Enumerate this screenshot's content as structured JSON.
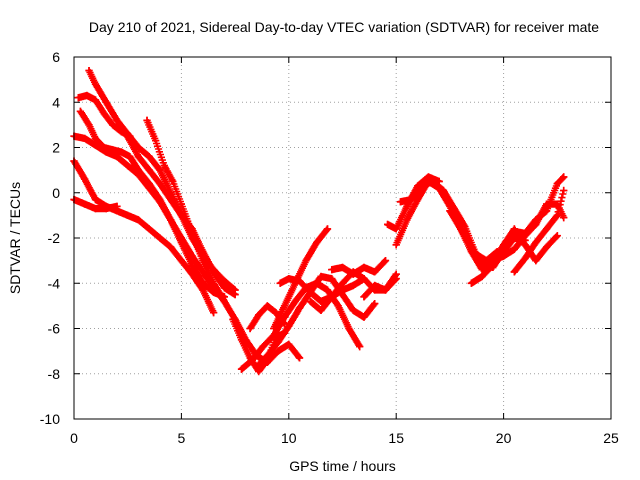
{
  "chart_data": {
    "type": "scatter",
    "title": "Day 210 of 2021, Sidereal Day-to-day VTEC variation (SDTVAR) for receiver mate",
    "xlabel": "GPS time / hours",
    "ylabel": "SDTVAR / TECUs",
    "xlim": [
      0,
      25
    ],
    "ylim": [
      -10,
      6
    ],
    "xticks": [
      0,
      5,
      10,
      15,
      20,
      25
    ],
    "yticks": [
      -10,
      -8,
      -6,
      -4,
      -2,
      0,
      2,
      4,
      6
    ],
    "grid": true,
    "marker": "plus",
    "color": "#ff0000",
    "series": [
      {
        "x": [
          0.0,
          0.5,
          1.0,
          1.5,
          2.0
        ],
        "y": [
          -0.3,
          -0.5,
          -0.7,
          -0.7,
          -0.6
        ]
      },
      {
        "x": [
          0.0,
          0.5,
          1.0,
          1.5,
          2.0,
          2.5,
          3.0,
          3.5,
          4.0,
          4.5,
          5.0,
          5.5,
          6.0,
          6.5
        ],
        "y": [
          1.4,
          0.6,
          -0.3,
          -0.6,
          -0.8,
          -1.0,
          -1.2,
          -1.6,
          -2.0,
          -2.4,
          -3.0,
          -3.6,
          -4.3,
          -5.3
        ]
      },
      {
        "x": [
          0.0,
          0.5,
          1.0,
          1.5,
          2.0,
          2.5,
          3.0,
          3.5,
          4.0,
          4.5,
          5.0,
          5.5,
          6.0,
          6.5,
          7.0
        ],
        "y": [
          2.5,
          2.4,
          2.1,
          1.8,
          1.6,
          1.2,
          0.8,
          0.2,
          -0.4,
          -1.2,
          -2.0,
          -2.8,
          -3.5,
          -4.2,
          -4.8
        ]
      },
      {
        "x": [
          0.2,
          0.6,
          1.0,
          1.4,
          1.8,
          2.2,
          2.6
        ],
        "y": [
          4.2,
          4.3,
          4.1,
          3.5,
          3.0,
          2.7,
          2.5
        ]
      },
      {
        "x": [
          0.3,
          0.7,
          1.0,
          1.4,
          1.8,
          2.2,
          2.6,
          3.0,
          3.5,
          4.0,
          4.5,
          5.0,
          5.5,
          6.0,
          6.5,
          7.0
        ],
        "y": [
          3.6,
          3.0,
          2.4,
          2.0,
          1.9,
          1.8,
          1.6,
          1.0,
          0.4,
          -0.3,
          -1.2,
          -2.2,
          -3.2,
          -4.0,
          -4.4,
          -4.6
        ]
      },
      {
        "x": [
          0.7,
          1.0,
          1.5,
          2.0,
          2.5,
          3.0,
          3.5,
          4.0,
          4.5,
          5.0,
          5.5,
          6.0,
          6.5,
          7.0,
          7.5
        ],
        "y": [
          5.4,
          4.8,
          4.0,
          3.2,
          2.6,
          2.0,
          1.6,
          1.0,
          0.0,
          -1.0,
          -2.0,
          -2.8,
          -3.4,
          -3.9,
          -4.3
        ]
      },
      {
        "x": [
          2.3,
          2.6,
          3.0,
          3.5,
          4.0,
          4.5,
          5.0,
          5.5,
          6.0,
          6.5,
          7.0,
          7.5
        ],
        "y": [
          2.8,
          2.3,
          1.6,
          1.0,
          0.4,
          -0.3,
          -1.0,
          -1.6,
          -2.6,
          -3.5,
          -4.2,
          -4.5
        ]
      },
      {
        "x": [
          3.4,
          3.8,
          4.2,
          4.6,
          5.0,
          5.5,
          6.0,
          6.5,
          7.0,
          7.5,
          8.0,
          8.5,
          9.0,
          9.5,
          10.0,
          10.5
        ],
        "y": [
          3.2,
          2.3,
          1.2,
          0.5,
          -0.5,
          -1.8,
          -3.0,
          -4.0,
          -4.8,
          -5.6,
          -6.5,
          -7.2,
          -7.5,
          -7.0,
          -6.7,
          -7.3
        ]
      },
      {
        "x": [
          7.4,
          7.8,
          8.2,
          8.6,
          9.0,
          9.4,
          9.8
        ],
        "y": [
          -5.6,
          -6.5,
          -7.3,
          -7.9,
          -7.4,
          -6.4,
          -6.2
        ]
      },
      {
        "x": [
          7.8,
          8.3,
          8.8,
          9.3,
          9.8,
          10.3,
          10.8,
          11.3,
          11.8,
          12.3,
          12.8,
          13.3
        ],
        "y": [
          -7.8,
          -7.4,
          -6.8,
          -6.3,
          -5.5,
          -4.8,
          -4.2,
          -4.0,
          -4.3,
          -5.0,
          -6.0,
          -6.8
        ]
      },
      {
        "x": [
          8.2,
          8.6,
          9.0,
          9.4,
          9.8
        ],
        "y": [
          -6.0,
          -5.4,
          -5.0,
          -5.3,
          -5.8
        ]
      },
      {
        "x": [
          8.5,
          9.0,
          9.5,
          10.0,
          10.5,
          11.0,
          11.5,
          12.0,
          12.5,
          13.0,
          13.5,
          14.0
        ],
        "y": [
          -7.7,
          -7.2,
          -6.6,
          -5.9,
          -5.1,
          -4.4,
          -3.7,
          -3.8,
          -4.5,
          -5.2,
          -5.5,
          -4.9
        ]
      },
      {
        "x": [
          9.3,
          9.8,
          10.3,
          10.8,
          11.3,
          11.8
        ],
        "y": [
          -6.0,
          -5.0,
          -4.0,
          -3.0,
          -2.2,
          -1.6
        ]
      },
      {
        "x": [
          9.6,
          10.0,
          10.5,
          11.0,
          11.5,
          12.0,
          12.5,
          13.0,
          13.5,
          14.0,
          14.5,
          15.0
        ],
        "y": [
          -4.0,
          -3.8,
          -3.9,
          -4.4,
          -4.8,
          -4.6,
          -4.0,
          -3.5,
          -3.8,
          -4.3,
          -4.3,
          -3.6
        ]
      },
      {
        "x": [
          11.0,
          11.5,
          12.0,
          12.5,
          13.0,
          13.5
        ],
        "y": [
          -4.8,
          -5.2,
          -4.6,
          -4.3,
          -4.1,
          -3.8
        ]
      },
      {
        "x": [
          12.0,
          12.5,
          13.0,
          13.5,
          14.0,
          14.5
        ],
        "y": [
          -3.4,
          -3.3,
          -3.6,
          -3.3,
          -3.5,
          -3.0
        ]
      },
      {
        "x": [
          13.5,
          14.0,
          14.5,
          15.0
        ],
        "y": [
          -4.6,
          -4.1,
          -4.3,
          -3.8
        ]
      },
      {
        "x": [
          14.6,
          15.0,
          15.5,
          16.0,
          16.5,
          17.0
        ],
        "y": [
          -1.4,
          -1.6,
          -0.6,
          0.3,
          0.7,
          0.5
        ]
      },
      {
        "x": [
          15.0,
          15.5,
          16.0,
          16.5,
          17.0,
          17.5,
          18.0,
          18.5,
          19.0,
          19.5,
          20.0,
          20.5,
          21.0
        ],
        "y": [
          -2.3,
          -1.2,
          -0.3,
          0.5,
          0.2,
          -0.6,
          -1.6,
          -2.4,
          -3.2,
          -3.3,
          -2.6,
          -2.0,
          -2.1
        ]
      },
      {
        "x": [
          15.2,
          15.7,
          16.2,
          16.7,
          17.2,
          17.7,
          18.2,
          18.7,
          19.2,
          19.7
        ],
        "y": [
          -0.4,
          -0.3,
          0.3,
          0.5,
          0.1,
          -0.7,
          -1.5,
          -2.7,
          -3.0,
          -2.6
        ]
      },
      {
        "x": [
          17.5,
          18.0,
          18.5,
          19.0,
          19.5,
          20.0,
          20.5,
          21.0,
          21.5,
          22.0,
          22.5
        ],
        "y": [
          -0.8,
          -1.6,
          -2.6,
          -3.4,
          -3.1,
          -2.3,
          -1.6,
          -2.3,
          -3.0,
          -2.4,
          -1.9
        ]
      },
      {
        "x": [
          18.5,
          19.0,
          19.5,
          20.0,
          20.5,
          21.0,
          21.5,
          22.0,
          22.5,
          22.8
        ],
        "y": [
          -4.0,
          -3.7,
          -3.2,
          -2.5,
          -1.7,
          -1.8,
          -1.2,
          -0.8,
          0.4,
          0.7
        ]
      },
      {
        "x": [
          19.5,
          20.0,
          20.5,
          21.0,
          21.5,
          22.0,
          22.5,
          22.8
        ],
        "y": [
          -3.0,
          -2.8,
          -2.5,
          -1.9,
          -1.4,
          -0.5,
          -0.5,
          -1.1
        ]
      },
      {
        "x": [
          20.5,
          21.0,
          21.5,
          22.0,
          22.5,
          22.8
        ],
        "y": [
          -3.5,
          -2.9,
          -2.2,
          -1.6,
          -1.0,
          0.1
        ]
      }
    ]
  }
}
